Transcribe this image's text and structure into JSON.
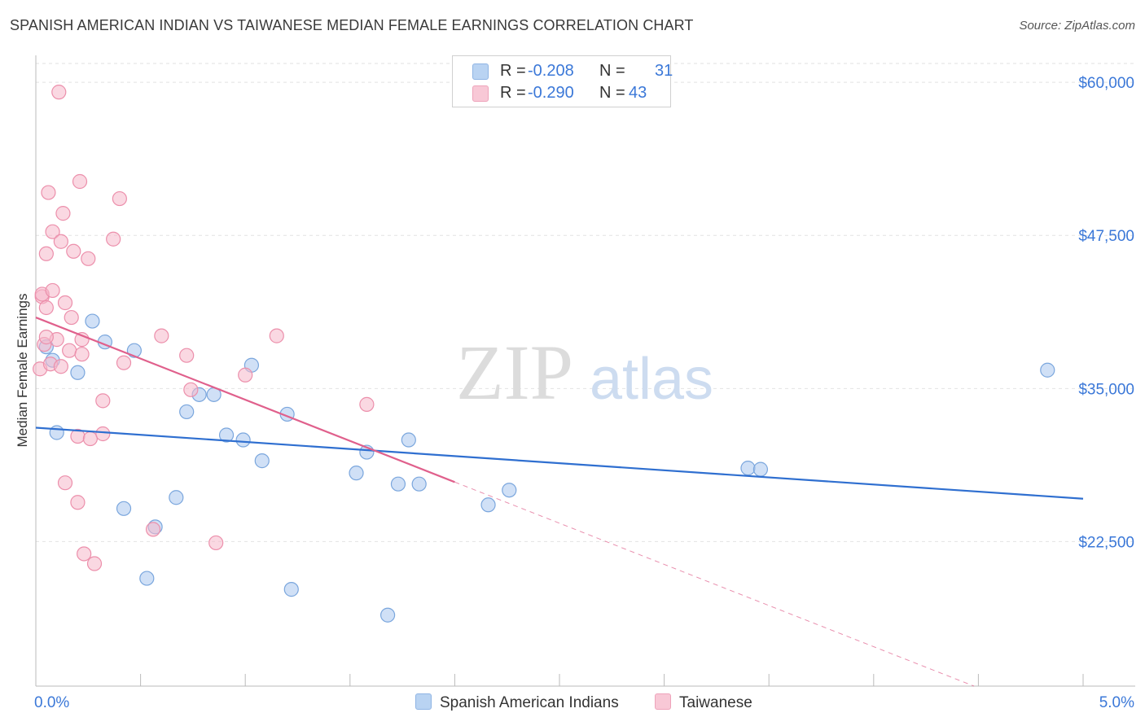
{
  "chart_data": {
    "type": "scatter",
    "title": "SPANISH AMERICAN INDIAN VS TAIWANESE MEDIAN FEMALE EARNINGS CORRELATION CHART",
    "source": "Source: ZipAtlas.com",
    "xlabel": "",
    "ylabel": "Median Female Earnings",
    "xlim": [
      0.0,
      5.0
    ],
    "ylim": [
      10700,
      62200
    ],
    "x_tick_labels": [
      "0.0%",
      "5.0%"
    ],
    "y_ticks": [
      22500,
      35000,
      47500,
      60000
    ],
    "y_tick_labels": [
      "$22,500",
      "$35,000",
      "$47,500",
      "$60,000"
    ],
    "watermark": {
      "zip": "ZIP",
      "atlas": "atlas"
    },
    "legend": {
      "r_label": "R =",
      "n_label": "N =",
      "entries": [
        {
          "r": "-0.208",
          "n": "31"
        },
        {
          "r": "-0.290",
          "n": "43"
        }
      ]
    },
    "series": [
      {
        "name": "Spanish American Indians",
        "color": "#a9c7ee",
        "stroke": "#7aa6dd",
        "line_color": "#2f6fd0",
        "trend": {
          "x0": 0.0,
          "y0": 31800,
          "x1": 5.0,
          "y1": 26000,
          "solid_end": 5.0
        },
        "points": [
          [
            0.05,
            38400
          ],
          [
            0.08,
            37300
          ],
          [
            0.1,
            31400
          ],
          [
            0.2,
            36300
          ],
          [
            0.27,
            40500
          ],
          [
            0.33,
            38800
          ],
          [
            0.42,
            25200
          ],
          [
            0.47,
            38100
          ],
          [
            0.53,
            19500
          ],
          [
            0.57,
            23700
          ],
          [
            0.67,
            26100
          ],
          [
            0.72,
            33100
          ],
          [
            0.78,
            34500
          ],
          [
            0.85,
            34500
          ],
          [
            0.91,
            31200
          ],
          [
            0.99,
            30800
          ],
          [
            1.03,
            36900
          ],
          [
            1.08,
            29100
          ],
          [
            1.2,
            32900
          ],
          [
            1.22,
            18600
          ],
          [
            1.53,
            28100
          ],
          [
            1.58,
            29800
          ],
          [
            1.68,
            16500
          ],
          [
            1.73,
            27200
          ],
          [
            1.78,
            30800
          ],
          [
            1.83,
            27200
          ],
          [
            2.16,
            25500
          ],
          [
            2.26,
            26700
          ],
          [
            3.4,
            28500
          ],
          [
            3.46,
            28400
          ],
          [
            4.83,
            36500
          ]
        ]
      },
      {
        "name": "Taiwanese",
        "color": "#f5b8ca",
        "stroke": "#ec8fab",
        "line_color": "#e0608c",
        "trend": {
          "x0": 0.0,
          "y0": 40800,
          "x1": 5.0,
          "y1": 7200,
          "solid_end": 2.0
        },
        "points": [
          [
            0.02,
            36600
          ],
          [
            0.03,
            42500
          ],
          [
            0.03,
            42700
          ],
          [
            0.04,
            38600
          ],
          [
            0.05,
            41600
          ],
          [
            0.05,
            46000
          ],
          [
            0.06,
            51000
          ],
          [
            0.07,
            37000
          ],
          [
            0.08,
            47800
          ],
          [
            0.08,
            43000
          ],
          [
            0.1,
            39000
          ],
          [
            0.11,
            59200
          ],
          [
            0.12,
            36800
          ],
          [
            0.12,
            47000
          ],
          [
            0.13,
            49300
          ],
          [
            0.14,
            42000
          ],
          [
            0.14,
            27300
          ],
          [
            0.16,
            38100
          ],
          [
            0.17,
            40800
          ],
          [
            0.18,
            46200
          ],
          [
            0.2,
            31100
          ],
          [
            0.2,
            25700
          ],
          [
            0.21,
            51900
          ],
          [
            0.22,
            37800
          ],
          [
            0.22,
            39000
          ],
          [
            0.23,
            21500
          ],
          [
            0.25,
            45600
          ],
          [
            0.26,
            30900
          ],
          [
            0.28,
            20700
          ],
          [
            0.32,
            31300
          ],
          [
            0.32,
            34000
          ],
          [
            0.37,
            47200
          ],
          [
            0.4,
            50500
          ],
          [
            0.42,
            37100
          ],
          [
            0.56,
            23500
          ],
          [
            0.6,
            39300
          ],
          [
            0.72,
            37700
          ],
          [
            0.74,
            34900
          ],
          [
            0.86,
            22400
          ],
          [
            1.0,
            36100
          ],
          [
            1.15,
            39300
          ],
          [
            1.58,
            33700
          ],
          [
            0.05,
            39200
          ]
        ]
      }
    ]
  }
}
